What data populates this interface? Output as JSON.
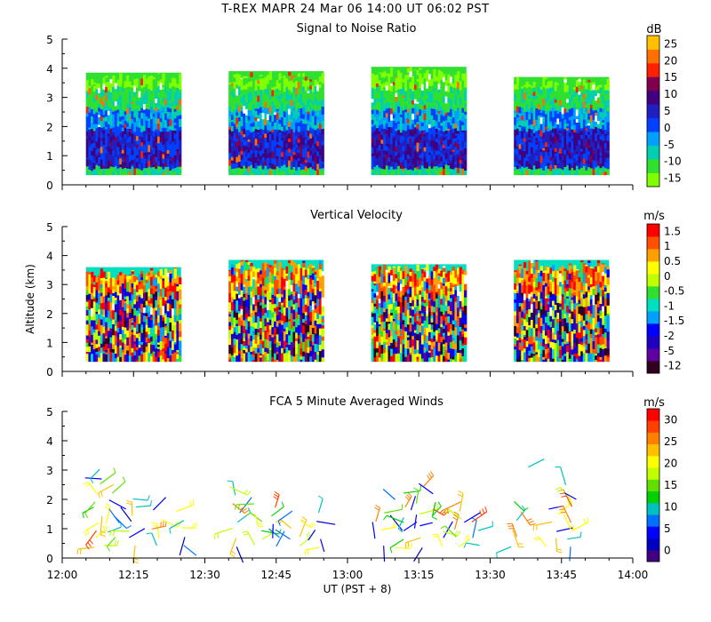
{
  "header": {
    "title": "T-REX   MAPR 24 Mar 06   14:00 UT   06:02   PST"
  },
  "colors": {
    "snr": [
      "#80ff00",
      "#30e030",
      "#00d0b0",
      "#00a0ff",
      "#0040ff",
      "#2020c0",
      "#400080",
      "#800050",
      "#ff2000",
      "#ff7000",
      "#ffc000"
    ],
    "velocity": [
      "#300020",
      "#6000a0",
      "#2000c0",
      "#0000ff",
      "#00a0ff",
      "#00e0c0",
      "#30e030",
      "#c0ff00",
      "#ffff00",
      "#ffa000",
      "#ff5000",
      "#ff0000"
    ],
    "wind": [
      "#400080",
      "#0000c0",
      "#0000ff",
      "#0070ff",
      "#00c0c0",
      "#00d000",
      "#60e000",
      "#c0ff00",
      "#ffff00",
      "#ffc000",
      "#ff8000",
      "#ff4000",
      "#ff0000"
    ]
  },
  "chart_data": [
    {
      "type": "heatmap",
      "title": "Signal to Noise Ratio",
      "xlabel": "",
      "ylabel": "",
      "units": "dB",
      "xlim": [
        0,
        120
      ],
      "ylim": [
        0,
        5
      ],
      "y_ticks": [
        "0",
        "1",
        "2",
        "3",
        "4",
        "5"
      ],
      "colorbar_labels": [
        "25",
        "20",
        "15",
        "10",
        "5",
        "0",
        "-5",
        "-10",
        "-15"
      ],
      "data_segments": [
        [
          5,
          25
        ],
        [
          35,
          55
        ],
        [
          65,
          85
        ],
        [
          95,
          115
        ]
      ],
      "data_bottom_km": 0.35,
      "data_top_km": [
        3.85,
        3.9,
        4.05,
        3.7
      ],
      "gradient": [
        [
          0.35,
          0.1
        ],
        [
          0.8,
          0.55
        ],
        [
          1.3,
          0.55
        ],
        [
          1.8,
          0.45
        ],
        [
          2.4,
          0.25
        ],
        [
          3.1,
          0.05
        ],
        [
          3.9,
          0.0
        ]
      ]
    },
    {
      "type": "heatmap",
      "title": "Vertical Velocity",
      "xlabel": "",
      "ylabel": "Altitude (km)",
      "units": "m/s",
      "xlim": [
        0,
        120
      ],
      "ylim": [
        0,
        5
      ],
      "y_ticks": [
        "0",
        "1",
        "2",
        "3",
        "4",
        "5"
      ],
      "colorbar_labels": [
        "1.5",
        "1",
        "0.5",
        "0",
        "-0.5",
        "-1",
        "-1.5",
        "-2",
        "-5",
        "-12"
      ],
      "data_segments": [
        [
          5,
          25
        ],
        [
          35,
          55
        ],
        [
          65,
          85
        ],
        [
          95,
          115
        ]
      ],
      "data_bottom_km": 0.35,
      "data_top_km": [
        3.6,
        3.85,
        3.7,
        3.85
      ]
    },
    {
      "type": "scatter",
      "title": "FCA 5 Minute Averaged Winds",
      "xlabel": "UT  (PST + 8)",
      "ylabel": "",
      "units": "m/s",
      "xlim": [
        0,
        120
      ],
      "ylim": [
        0,
        5
      ],
      "y_ticks": [
        "0",
        "1",
        "2",
        "3",
        "4",
        "5"
      ],
      "x_ticks": [
        "12:00",
        "12:15",
        "12:30",
        "12:45",
        "13:00",
        "13:15",
        "13:30",
        "13:45",
        "14:00"
      ],
      "colorbar_labels": [
        "30",
        "25",
        "20",
        "15",
        "10",
        "5",
        "0"
      ],
      "wind_columns_min": [
        7.5,
        10,
        15,
        20,
        25,
        36.5,
        41,
        45,
        49,
        54,
        67,
        71,
        75,
        79,
        83,
        87,
        95.5,
        103,
        106
      ],
      "wind_column_tops_km": [
        3.0,
        2.5,
        2.0,
        1.6,
        1.6,
        2.4,
        1.8,
        1.7,
        1.6,
        1.5,
        1.5,
        2.2,
        2.4,
        2.2,
        1.9,
        1.5,
        1.9,
        1.7,
        2.5
      ],
      "wind_isolated": [
        {
          "x_min": 98,
          "alt_km": 3.1,
          "speed_ms": 10
        }
      ]
    }
  ]
}
